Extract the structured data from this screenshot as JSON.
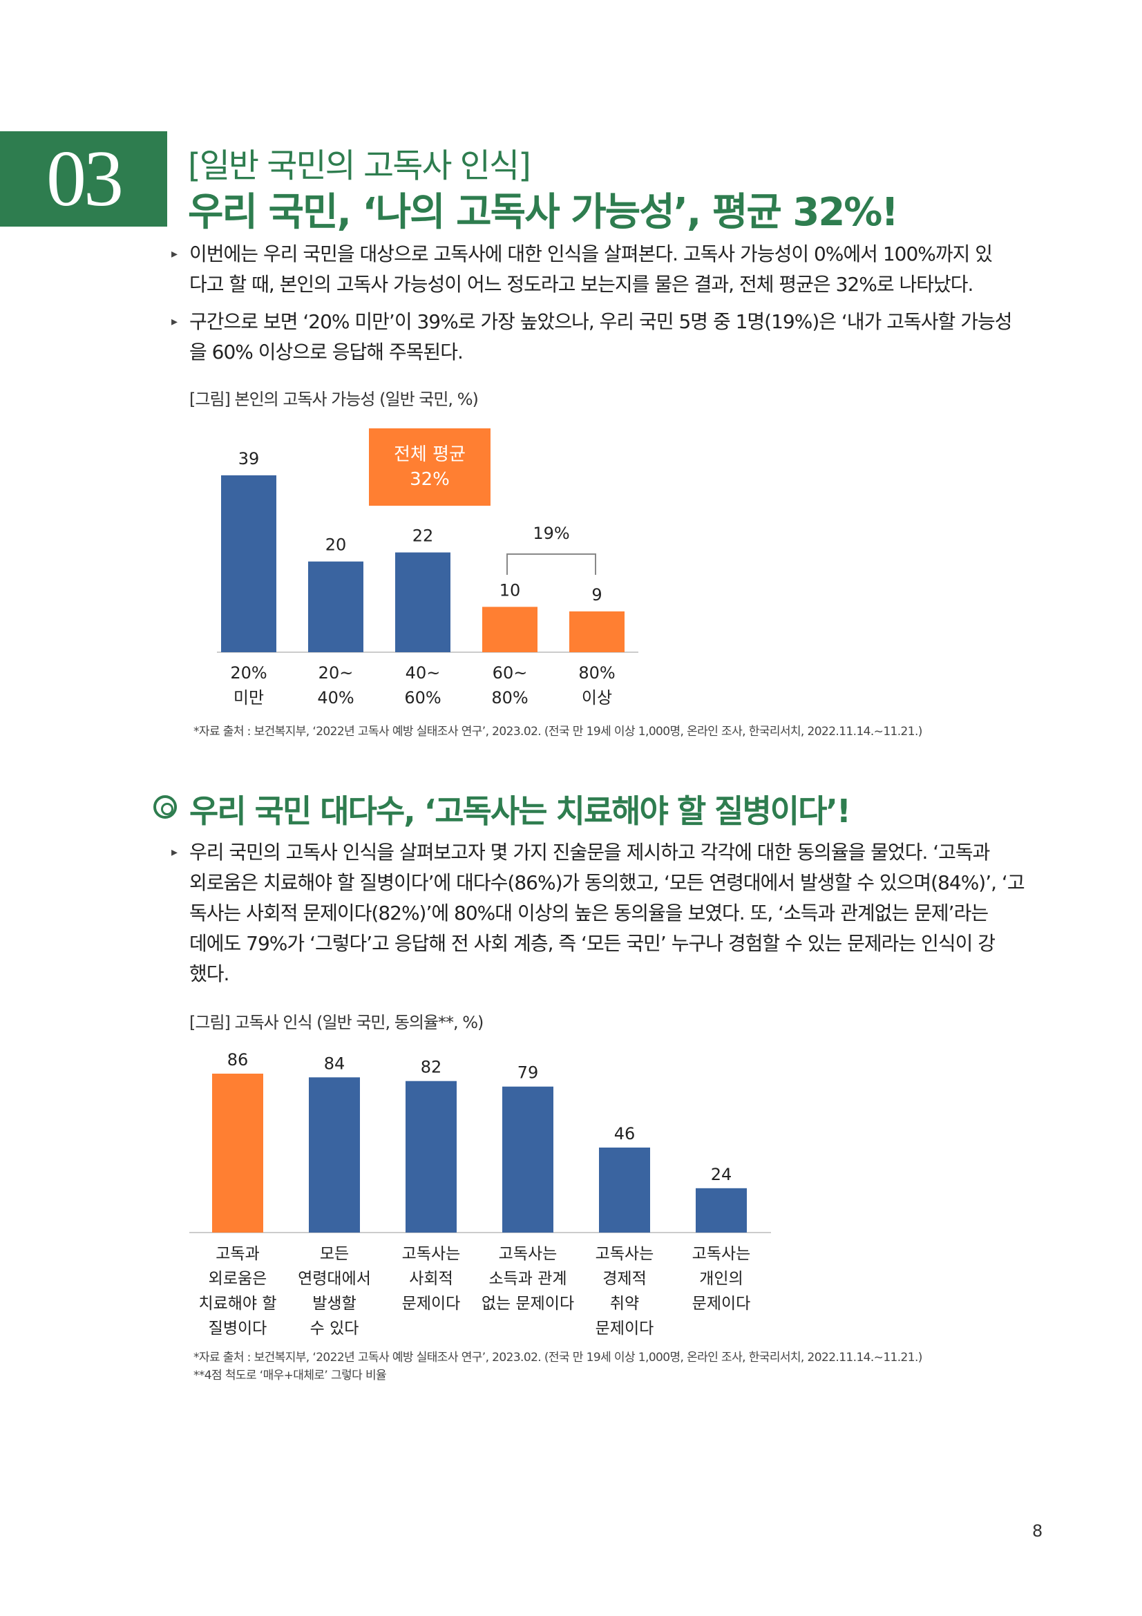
{
  "section": {
    "number": "03",
    "subtitle": "[일반 국민의 고독사 인식]",
    "title": "우리 국민, ‘나의 고독사 가능성’, 평균 32%!"
  },
  "intro_bullets": [
    "이번에는 우리 국민을 대상으로 고독사에 대한 인식을 살펴본다. 고독사 가능성이 0%에서 100%까지 있\n다고 할 때, 본인의 고독사 가능성이 어느 정도라고 보는지를 물은 결과, 전체 평균은 32%로 나타났다.",
    "구간으로 보면 ‘20% 미만’이 39%로 가장 높았으나, 우리 국민 5명 중 1명(19%)은 ‘내가 고독사할 가능성\n을 60% 이상으로 응답해 주목된다."
  ],
  "figure1": {
    "caption": "[그림] 본인의 고독사 가능성 (일반 국민, %)",
    "average_box": {
      "line1": "전체 평균",
      "line2": "32%"
    },
    "bracket_label": "19%",
    "source": "*자료 출처 : 보건복지부, ‘2022년 고독사 예방 실태조사 연구’, 2023.02. (전국 만 19세 이상 1,000명, 온라인 조사, 한국리서치, 2022.11.14.~11.21.)"
  },
  "section2": {
    "heading": "우리 국민 대다수, ‘고독사는 치료해야 할 질병이다’!",
    "bullet": "우리 국민의 고독사 인식을 살펴보고자 몇 가지 진술문을 제시하고 각각에 대한 동의율을 물었다. ‘고독과\n외로움은 치료해야 할 질병이다’에 대다수(86%)가 동의했고, ‘모든 연령대에서 발생할 수 있으며(84%)’, ‘고\n독사는 사회적 문제이다(82%)’에 80%대 이상의 높은 동의율을 보였다. 또, ‘소득과 관계없는 문제’라는\n데에도 79%가 ‘그렇다’고 응답해 전 사회 계층, 즉 ‘모든 국민’ 누구나 경험할 수 있는 문제라는 인식이 강\n했다."
  },
  "figure2": {
    "caption": "[그림] 고독사 인식 (일반 국민, 동의율**, %)",
    "source1": "*자료 출처 : 보건복지부, ‘2022년 고독사 예방 실태조사 연구’, 2023.02. (전국 만 19세 이상 1,000명, 온라인 조사, 한국리서치, 2022.11.14.~11.21.)",
    "source2": "**4점 척도로 ‘매우+대체로’ 그렇다 비율"
  },
  "page_number": "8",
  "colors": {
    "green": "#2e7d4f",
    "blue": "#3a64a0",
    "orange": "#ff7f32"
  },
  "chart_data": [
    {
      "type": "bar",
      "title": "[그림] 본인의 고독사 가능성 (일반 국민, %)",
      "categories": [
        [
          "20%",
          "미만"
        ],
        [
          "20~",
          "40%"
        ],
        [
          "40~",
          "60%"
        ],
        [
          "60~",
          "80%"
        ],
        [
          "80%",
          "이상"
        ]
      ],
      "values": [
        39,
        20,
        22,
        10,
        9
      ],
      "highlight": [
        "blue",
        "blue",
        "blue",
        "orange",
        "orange"
      ],
      "ylim": [
        0,
        39
      ],
      "xlabel": "",
      "ylabel": ""
    },
    {
      "type": "bar",
      "title": "[그림] 고독사 인식 (일반 국민, 동의율**, %)",
      "categories": [
        [
          "고독과",
          "외로움은",
          "치료해야 할",
          "질병이다"
        ],
        [
          "모든",
          "연령대에서",
          "발생할",
          "수 있다"
        ],
        [
          "고독사는",
          "사회적",
          "문제이다"
        ],
        [
          "고독사는",
          "소득과 관계",
          "없는 문제이다"
        ],
        [
          "고독사는",
          "경제적",
          "취약",
          "문제이다"
        ],
        [
          "고독사는",
          "개인의",
          "문제이다"
        ]
      ],
      "values": [
        86,
        84,
        82,
        79,
        46,
        24
      ],
      "highlight": [
        "orange",
        "blue",
        "blue",
        "blue",
        "blue",
        "blue"
      ],
      "ylim": [
        0,
        86
      ],
      "xlabel": "",
      "ylabel": ""
    }
  ]
}
